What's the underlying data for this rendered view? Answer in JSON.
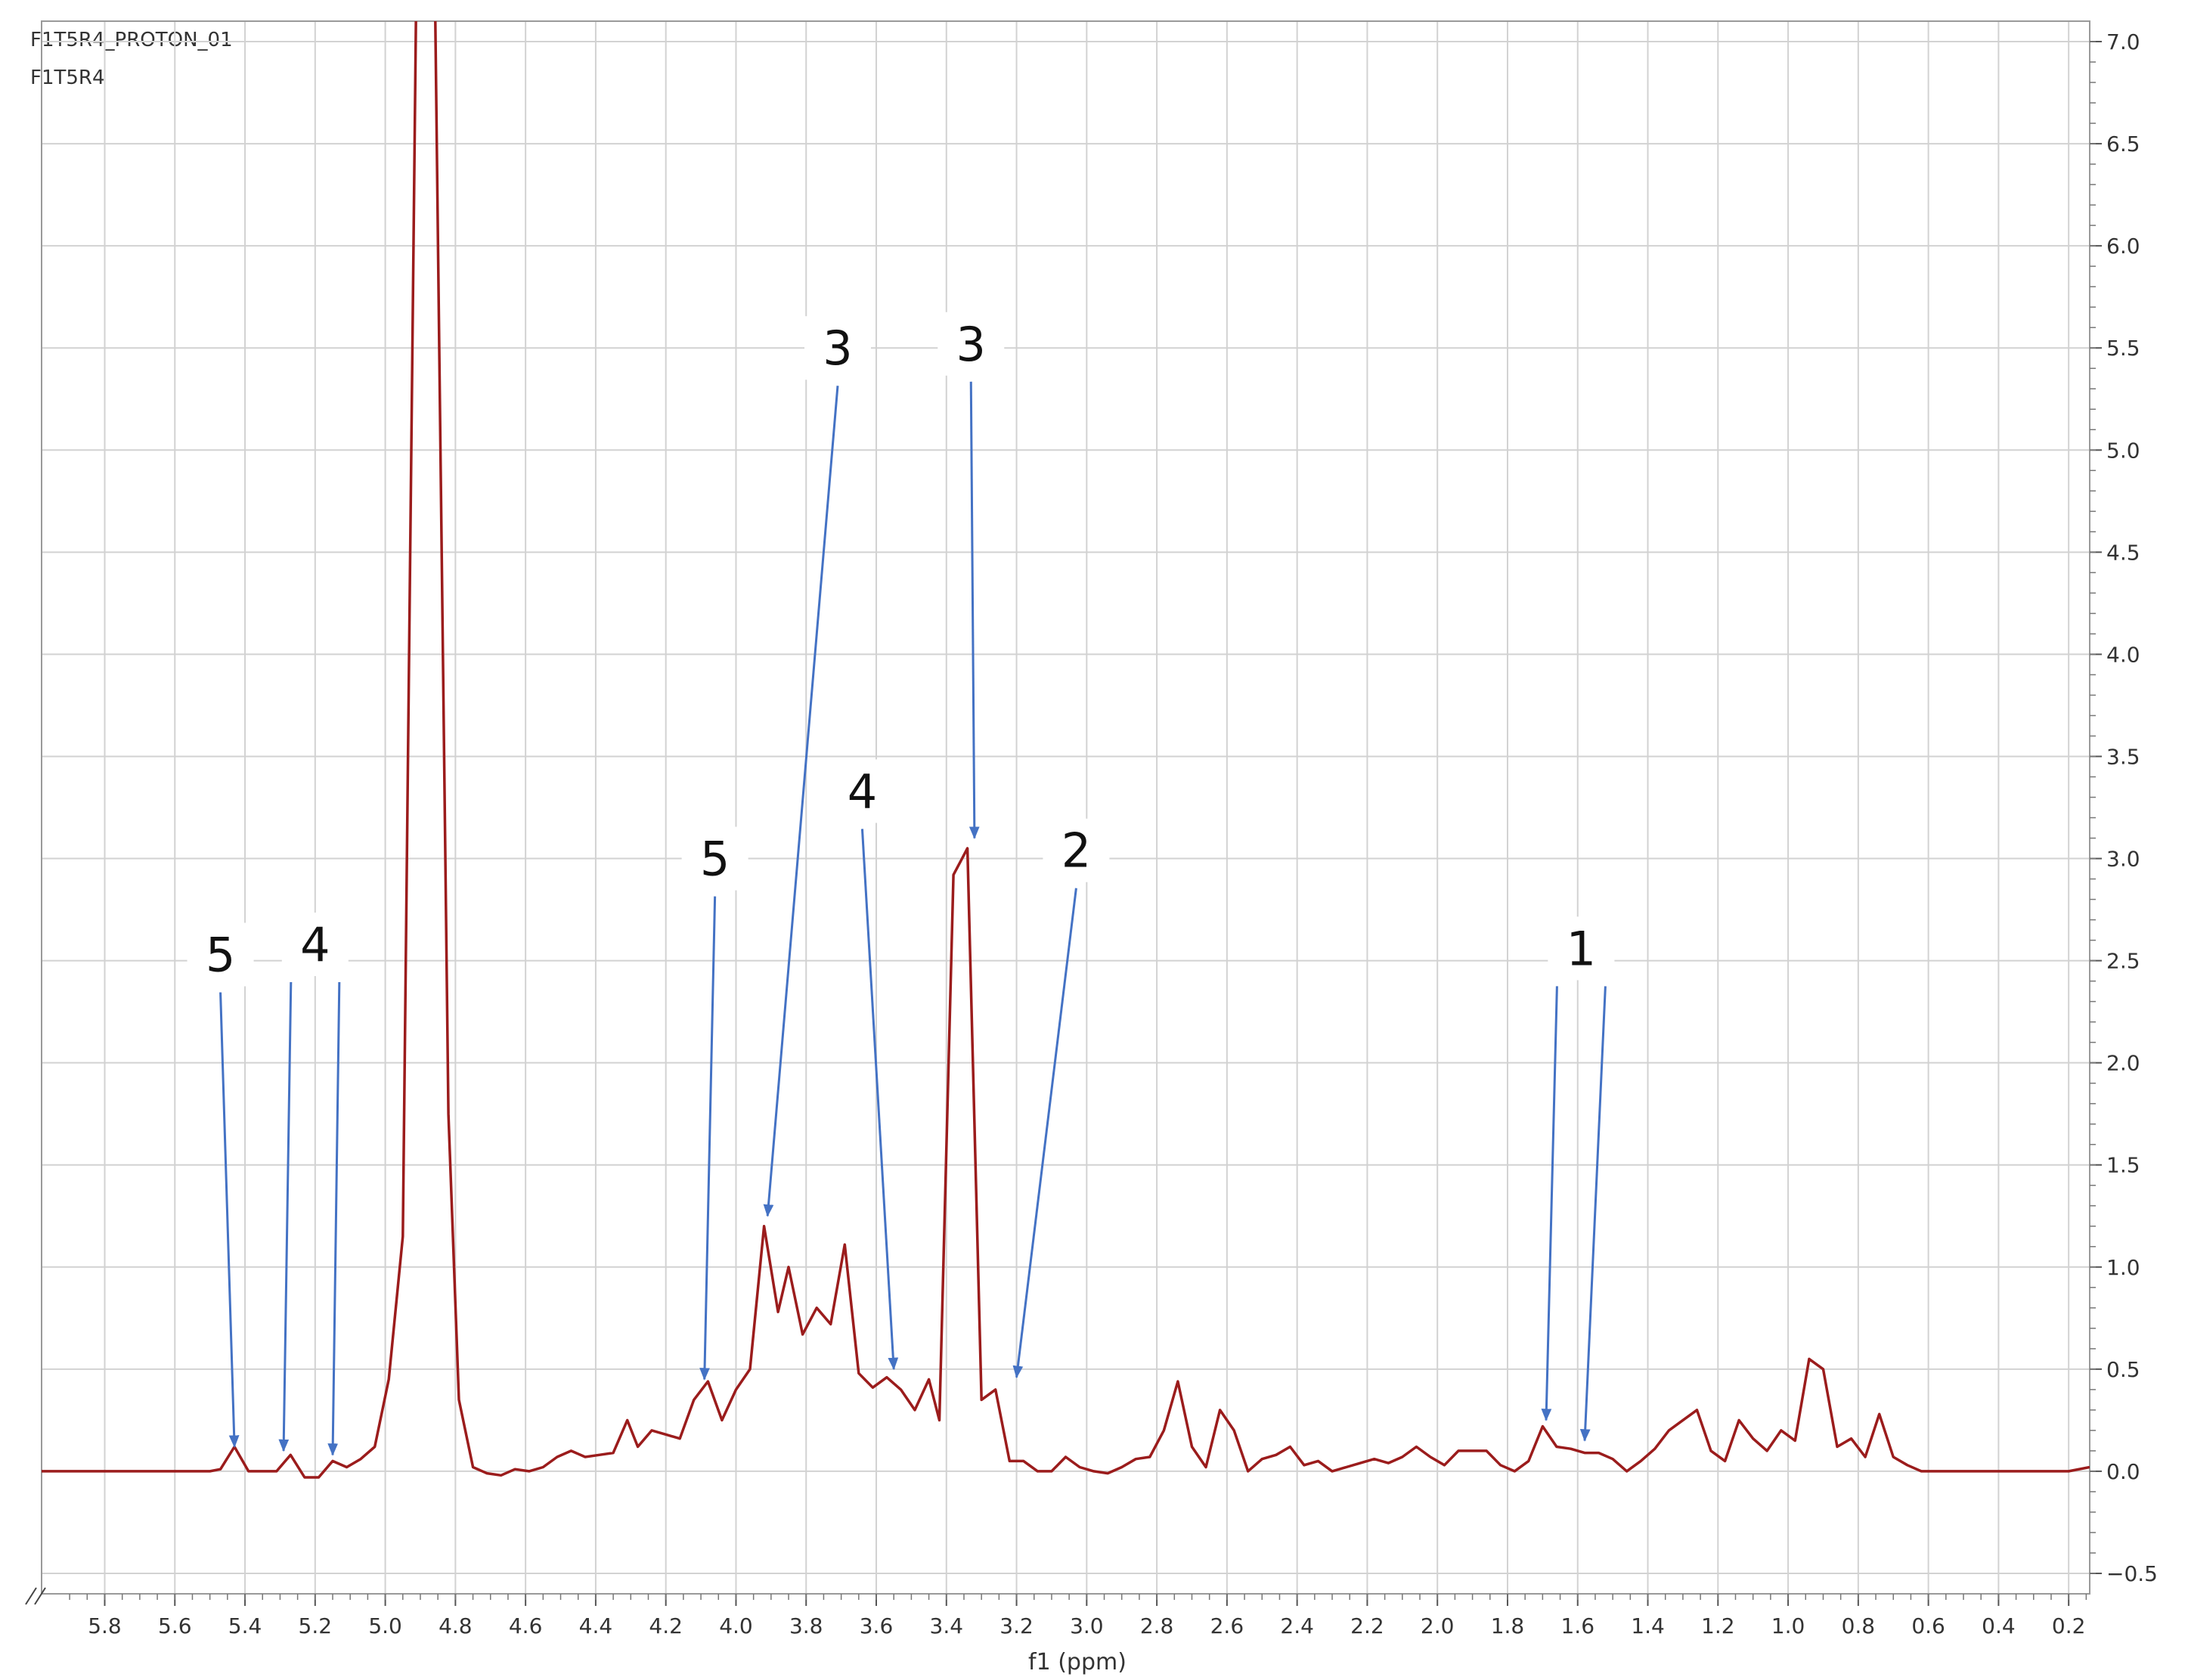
{
  "header": {
    "line1": "F1T5R4_PROTON_01",
    "line2": "F1T5R4"
  },
  "chart_data": {
    "type": "line",
    "xlabel": "f1 (ppm)",
    "ylabel": "",
    "xlim": [
      5.98,
      0.14
    ],
    "ylim": [
      -0.6,
      7.1
    ],
    "grid": true,
    "x_reversed": true,
    "x_ticks": [
      "5.8",
      "5.6",
      "5.4",
      "5.2",
      "5.0",
      "4.8",
      "4.6",
      "4.4",
      "4.2",
      "4.0",
      "3.8",
      "3.6",
      "3.4",
      "3.2",
      "3.0",
      "2.8",
      "2.6",
      "2.4",
      "2.2",
      "2.0",
      "1.8",
      "1.6",
      "1.4",
      "1.2",
      "1.0",
      "0.8",
      "0.6",
      "0.4",
      "0.2"
    ],
    "y_ticks": [
      "7.0",
      "6.5",
      "6.0",
      "5.5",
      "5.0",
      "4.5",
      "4.0",
      "3.5",
      "3.0",
      "2.5",
      "2.0",
      "1.5",
      "1.0",
      "0.5",
      "0.0",
      "−0.5"
    ],
    "series": [
      {
        "color": "#9b1c1c",
        "x": [
          6.0,
          5.9,
          5.8,
          5.7,
          5.6,
          5.5,
          5.47,
          5.43,
          5.39,
          5.35,
          5.31,
          5.27,
          5.23,
          5.19,
          5.15,
          5.11,
          5.07,
          5.03,
          4.99,
          4.95,
          4.91,
          4.86,
          4.82,
          4.79,
          4.75,
          4.71,
          4.67,
          4.63,
          4.59,
          4.55,
          4.51,
          4.47,
          4.43,
          4.39,
          4.35,
          4.31,
          4.28,
          4.24,
          4.2,
          4.16,
          4.12,
          4.08,
          4.04,
          4.0,
          3.96,
          3.92,
          3.88,
          3.85,
          3.81,
          3.77,
          3.73,
          3.69,
          3.65,
          3.61,
          3.57,
          3.53,
          3.49,
          3.45,
          3.42,
          3.38,
          3.34,
          3.3,
          3.26,
          3.22,
          3.18,
          3.14,
          3.1,
          3.06,
          3.02,
          2.98,
          2.94,
          2.9,
          2.86,
          2.82,
          2.78,
          2.74,
          2.7,
          2.66,
          2.62,
          2.58,
          2.54,
          2.5,
          2.46,
          2.42,
          2.38,
          2.34,
          2.3,
          2.26,
          2.22,
          2.18,
          2.14,
          2.1,
          2.06,
          2.02,
          1.98,
          1.94,
          1.9,
          1.86,
          1.82,
          1.78,
          1.74,
          1.7,
          1.66,
          1.62,
          1.58,
          1.54,
          1.5,
          1.46,
          1.42,
          1.38,
          1.34,
          1.3,
          1.26,
          1.22,
          1.18,
          1.14,
          1.1,
          1.06,
          1.02,
          0.98,
          0.94,
          0.9,
          0.86,
          0.82,
          0.78,
          0.74,
          0.7,
          0.66,
          0.62,
          0.58,
          0.5,
          0.4,
          0.3,
          0.2,
          0.14
        ],
        "values": [
          0.0,
          0.0,
          0.0,
          0.0,
          0.0,
          0.0,
          0.01,
          0.12,
          0.0,
          0.0,
          0.0,
          0.08,
          -0.03,
          -0.03,
          0.05,
          0.02,
          0.06,
          0.12,
          0.45,
          1.15,
          7.5,
          7.5,
          1.75,
          0.35,
          0.02,
          -0.01,
          -0.02,
          0.01,
          0.0,
          0.02,
          0.07,
          0.1,
          0.07,
          0.08,
          0.09,
          0.25,
          0.12,
          0.2,
          0.18,
          0.16,
          0.35,
          0.44,
          0.25,
          0.4,
          0.5,
          1.2,
          0.78,
          1.0,
          0.67,
          0.8,
          0.72,
          1.11,
          0.48,
          0.41,
          0.46,
          0.4,
          0.3,
          0.45,
          0.25,
          2.92,
          3.05,
          0.35,
          0.4,
          0.05,
          0.05,
          0.0,
          0.0,
          0.07,
          0.02,
          0.0,
          -0.01,
          0.02,
          0.06,
          0.07,
          0.2,
          0.44,
          0.12,
          0.02,
          0.3,
          0.2,
          0.0,
          0.06,
          0.08,
          0.12,
          0.03,
          0.05,
          0.0,
          0.02,
          0.04,
          0.06,
          0.04,
          0.07,
          0.12,
          0.07,
          0.03,
          0.1,
          0.1,
          0.1,
          0.03,
          0.0,
          0.05,
          0.22,
          0.12,
          0.11,
          0.09,
          0.09,
          0.06,
          0.0,
          0.05,
          0.11,
          0.2,
          0.25,
          0.3,
          0.1,
          0.05,
          0.25,
          0.16,
          0.1,
          0.2,
          0.15,
          0.55,
          0.5,
          0.12,
          0.16,
          0.07,
          0.28,
          0.07,
          0.03,
          0.0,
          0.0,
          0.0,
          0.0,
          0.0,
          0.0,
          0.02
        ]
      }
    ],
    "annotations": [
      {
        "label": "5",
        "label_at": [
          5.47,
          2.53
        ],
        "arrows_to": [
          [
            5.43,
            0.12
          ]
        ]
      },
      {
        "label": "4",
        "label_at": [
          5.2,
          2.58
        ],
        "arrows_to": [
          [
            5.29,
            0.1
          ],
          [
            5.15,
            0.08
          ]
        ]
      },
      {
        "label": "5",
        "label_at": [
          4.06,
          3.0
        ],
        "arrows_to": [
          [
            4.09,
            0.45
          ]
        ]
      },
      {
        "label": "3",
        "label_at": [
          3.71,
          5.5
        ],
        "arrows_to": [
          [
            3.91,
            1.25
          ]
        ]
      },
      {
        "label": "4",
        "label_at": [
          3.64,
          3.33
        ],
        "arrows_to": [
          [
            3.55,
            0.5
          ]
        ]
      },
      {
        "label": "3",
        "label_at": [
          3.33,
          5.52
        ],
        "arrows_to": [
          [
            3.32,
            3.1
          ]
        ]
      },
      {
        "label": "2",
        "label_at": [
          3.03,
          3.04
        ],
        "arrows_to": [
          [
            3.2,
            0.46
          ]
        ]
      },
      {
        "label": "1",
        "label_at": [
          1.59,
          2.56
        ],
        "arrows_to": [
          [
            1.69,
            0.25
          ],
          [
            1.58,
            0.15
          ]
        ]
      }
    ]
  }
}
